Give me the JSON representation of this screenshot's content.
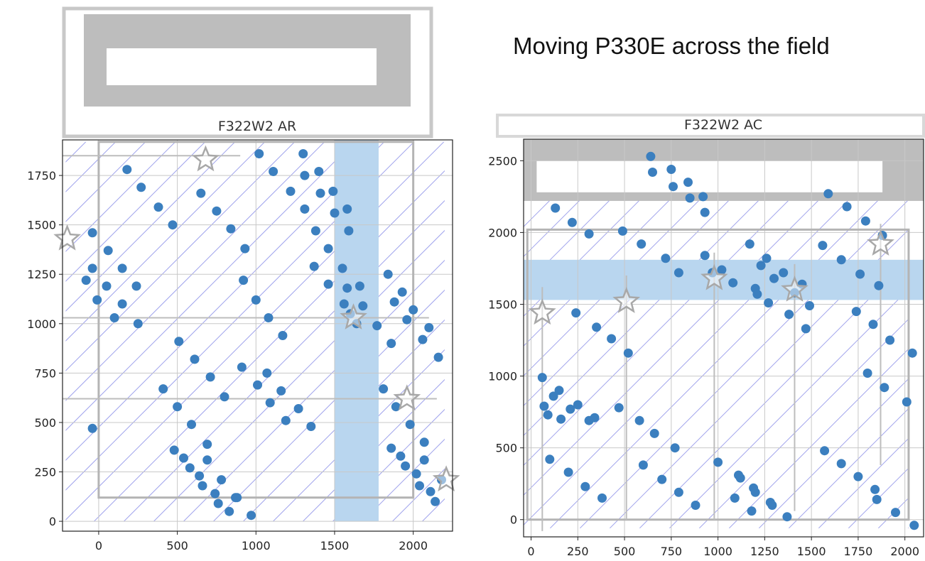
{
  "slide": {
    "title": "Moving P330E across the field"
  },
  "colors": {
    "point": "#3b7fbf",
    "band": "#b9d6ef",
    "hatch": "#8a8ee8",
    "detector": "#c0c0c0",
    "grid": "#c8c8c8"
  },
  "chart_data": [
    {
      "type": "scatter",
      "title": "F322W2 AR",
      "xlim": [
        -230,
        2250
      ],
      "ylim": [
        -50,
        1930
      ],
      "xticks": [
        0,
        500,
        1000,
        1500,
        2000
      ],
      "yticks": [
        0,
        250,
        500,
        750,
        1000,
        1250,
        1500,
        1750
      ],
      "grid": true,
      "band": {
        "axis": "x",
        "range": [
          1500,
          1780
        ]
      },
      "stars": [
        [
          -200,
          1430
        ],
        [
          680,
          1830
        ],
        [
          1620,
          1030
        ],
        [
          1960,
          620
        ],
        [
          2210,
          210
        ]
      ],
      "series": [
        {
          "points": [
            [
              -80,
              1220
            ],
            [
              -40,
              1280
            ],
            [
              -40,
              1460
            ],
            [
              -10,
              1120
            ],
            [
              50,
              1190
            ],
            [
              60,
              1370
            ],
            [
              100,
              1030
            ],
            [
              150,
              1280
            ],
            [
              150,
              1100
            ],
            [
              180,
              1780
            ],
            [
              240,
              1190
            ],
            [
              250,
              1000
            ],
            [
              270,
              1690
            ],
            [
              380,
              1590
            ],
            [
              470,
              1500
            ],
            [
              -40,
              470
            ],
            [
              410,
              670
            ],
            [
              480,
              360
            ],
            [
              500,
              580
            ],
            [
              510,
              910
            ],
            [
              540,
              320
            ],
            [
              580,
              270
            ],
            [
              590,
              490
            ],
            [
              610,
              820
            ],
            [
              640,
              230
            ],
            [
              650,
              1660
            ],
            [
              660,
              180
            ],
            [
              690,
              390
            ],
            [
              690,
              310
            ],
            [
              710,
              730
            ],
            [
              740,
              140
            ],
            [
              750,
              1570
            ],
            [
              760,
              90
            ],
            [
              780,
              210
            ],
            [
              800,
              630
            ],
            [
              830,
              50
            ],
            [
              840,
              1480
            ],
            [
              870,
              120
            ],
            [
              880,
              120
            ],
            [
              910,
              780
            ],
            [
              920,
              1220
            ],
            [
              930,
              1380
            ],
            [
              970,
              30
            ],
            [
              1000,
              1120
            ],
            [
              1010,
              690
            ],
            [
              1020,
              1860
            ],
            [
              1070,
              750
            ],
            [
              1080,
              1030
            ],
            [
              1090,
              600
            ],
            [
              1110,
              1770
            ],
            [
              1160,
              660
            ],
            [
              1170,
              940
            ],
            [
              1190,
              510
            ],
            [
              1220,
              1670
            ],
            [
              1270,
              570
            ],
            [
              1300,
              1860
            ],
            [
              1310,
              1580
            ],
            [
              1310,
              1750
            ],
            [
              1350,
              480
            ],
            [
              1370,
              1290
            ],
            [
              1380,
              1470
            ],
            [
              1400,
              1770
            ],
            [
              1410,
              1660
            ],
            [
              1460,
              1380
            ],
            [
              1460,
              1200
            ],
            [
              1490,
              1670
            ],
            [
              1500,
              1560
            ],
            [
              1550,
              1280
            ],
            [
              1560,
              1100
            ],
            [
              1580,
              1580
            ],
            [
              1580,
              1180
            ],
            [
              1590,
              1470
            ],
            [
              1600,
              1050
            ],
            [
              1640,
              1000
            ],
            [
              1660,
              1190
            ],
            [
              1680,
              1090
            ],
            [
              1770,
              990
            ],
            [
              1810,
              670
            ],
            [
              1840,
              1250
            ],
            [
              1860,
              370
            ],
            [
              1860,
              900
            ],
            [
              1880,
              1110
            ],
            [
              1890,
              580
            ],
            [
              1920,
              330
            ],
            [
              1930,
              1160
            ],
            [
              1950,
              280
            ],
            [
              1960,
              1020
            ],
            [
              1980,
              490
            ],
            [
              2000,
              1070
            ],
            [
              2020,
              240
            ],
            [
              2040,
              180
            ],
            [
              2060,
              920
            ],
            [
              2070,
              400
            ],
            [
              2070,
              310
            ],
            [
              2100,
              980
            ],
            [
              2110,
              150
            ],
            [
              2140,
              100
            ],
            [
              2160,
              830
            ],
            [
              2180,
              210
            ]
          ]
        }
      ]
    },
    {
      "type": "scatter",
      "title": "F322W2 AC",
      "xlim": [
        -40,
        2100
      ],
      "ylim": [
        -120,
        2650
      ],
      "xticks": [
        0,
        250,
        500,
        750,
        1000,
        1250,
        1500,
        1750,
        2000
      ],
      "yticks": [
        0,
        500,
        1000,
        1500,
        2000,
        2500
      ],
      "grid": true,
      "band": {
        "axis": "y",
        "range": [
          1530,
          1810
        ]
      },
      "stars": [
        [
          60,
          1440
        ],
        [
          510,
          1520
        ],
        [
          980,
          1680
        ],
        [
          1410,
          1600
        ],
        [
          1870,
          1920
        ]
      ],
      "series": [
        {
          "points": [
            [
              60,
              990
            ],
            [
              70,
              790
            ],
            [
              90,
              730
            ],
            [
              100,
              420
            ],
            [
              120,
              860
            ],
            [
              130,
              2170
            ],
            [
              150,
              900
            ],
            [
              160,
              700
            ],
            [
              200,
              330
            ],
            [
              210,
              770
            ],
            [
              220,
              2070
            ],
            [
              240,
              1440
            ],
            [
              250,
              800
            ],
            [
              290,
              230
            ],
            [
              310,
              690
            ],
            [
              310,
              1990
            ],
            [
              340,
              710
            ],
            [
              350,
              1340
            ],
            [
              380,
              150
            ],
            [
              430,
              1260
            ],
            [
              470,
              780
            ],
            [
              490,
              2010
            ],
            [
              520,
              1160
            ],
            [
              580,
              690
            ],
            [
              590,
              1920
            ],
            [
              600,
              380
            ],
            [
              640,
              2530
            ],
            [
              650,
              2420
            ],
            [
              660,
              600
            ],
            [
              700,
              280
            ],
            [
              720,
              1820
            ],
            [
              750,
              2440
            ],
            [
              760,
              2320
            ],
            [
              770,
              500
            ],
            [
              790,
              1720
            ],
            [
              790,
              190
            ],
            [
              840,
              2350
            ],
            [
              850,
              2240
            ],
            [
              880,
              100
            ],
            [
              920,
              2250
            ],
            [
              930,
              1840
            ],
            [
              930,
              2140
            ],
            [
              970,
              1720
            ],
            [
              1000,
              400
            ],
            [
              1020,
              1740
            ],
            [
              1080,
              1650
            ],
            [
              1090,
              150
            ],
            [
              1110,
              310
            ],
            [
              1120,
              290
            ],
            [
              1170,
              1920
            ],
            [
              1180,
              60
            ],
            [
              1190,
              220
            ],
            [
              1200,
              190
            ],
            [
              1200,
              1610
            ],
            [
              1210,
              1570
            ],
            [
              1230,
              1770
            ],
            [
              1260,
              1820
            ],
            [
              1270,
              1510
            ],
            [
              1280,
              120
            ],
            [
              1290,
              100
            ],
            [
              1300,
              1680
            ],
            [
              1350,
              1720
            ],
            [
              1370,
              20
            ],
            [
              1380,
              1430
            ],
            [
              1410,
              1580
            ],
            [
              1450,
              1640
            ],
            [
              1470,
              1330
            ],
            [
              1490,
              1490
            ],
            [
              1560,
              1910
            ],
            [
              1570,
              480
            ],
            [
              1590,
              2270
            ],
            [
              1660,
              390
            ],
            [
              1660,
              1810
            ],
            [
              1690,
              2180
            ],
            [
              1740,
              1450
            ],
            [
              1750,
              300
            ],
            [
              1760,
              1710
            ],
            [
              1790,
              2080
            ],
            [
              1800,
              1020
            ],
            [
              1830,
              1360
            ],
            [
              1840,
              210
            ],
            [
              1850,
              140
            ],
            [
              1860,
              1630
            ],
            [
              1880,
              1980
            ],
            [
              1890,
              920
            ],
            [
              1920,
              1250
            ],
            [
              1950,
              50
            ],
            [
              2010,
              820
            ],
            [
              2040,
              1160
            ],
            [
              2050,
              -40
            ]
          ]
        }
      ]
    }
  ]
}
